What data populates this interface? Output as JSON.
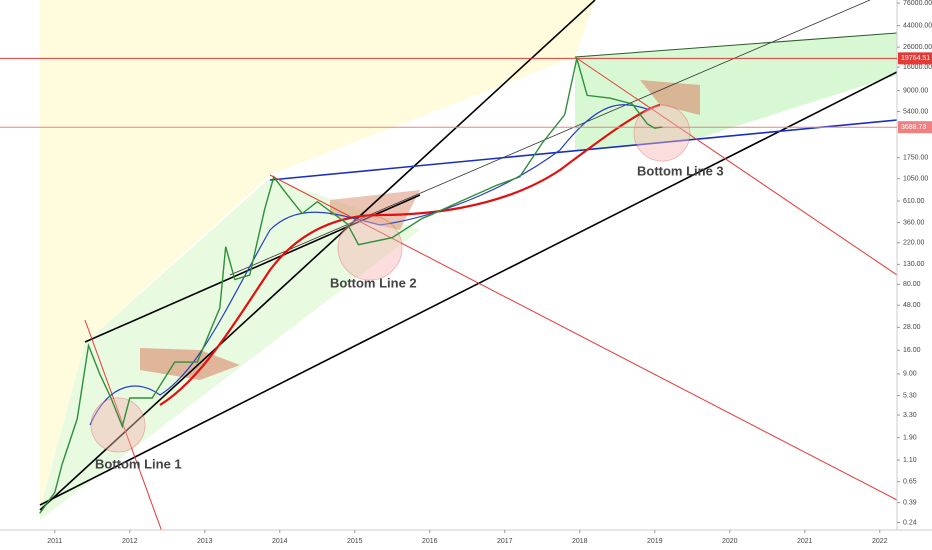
{
  "chart_data": {
    "type": "line",
    "log_scale": true,
    "x": [
      2010.8,
      2011.0,
      2011.1,
      2011.3,
      2011.45,
      2011.6,
      2011.75,
      2011.9,
      2012.0,
      2012.3,
      2012.6,
      2012.9,
      2013.2,
      2013.28,
      2013.4,
      2013.6,
      2013.8,
      2013.92,
      2014.05,
      2014.3,
      2014.5,
      2014.9,
      2015.05,
      2015.5,
      2015.9,
      2016.0,
      2016.5,
      2016.9,
      2017.2,
      2017.5,
      2017.8,
      2017.96,
      2018.1,
      2018.4,
      2018.7,
      2018.9,
      2019.0,
      2019.1
    ],
    "series": [
      {
        "color": "#2f8f3a",
        "values": [
          0.3,
          0.5,
          1.0,
          3.0,
          18,
          9,
          5,
          2.5,
          5,
          5,
          12,
          12,
          45,
          200,
          90,
          100,
          500,
          1100,
          800,
          450,
          600,
          350,
          210,
          250,
          400,
          430,
          650,
          900,
          1100,
          2500,
          5000,
          19700,
          8000,
          7500,
          6500,
          4000,
          3600,
          3700
        ]
      }
    ],
    "xlim": [
      2010.27,
      2022.23
    ],
    "ylim": [
      0.2,
      82000
    ],
    "xticks": [
      2011,
      2012,
      2013,
      2014,
      2015,
      2016,
      2017,
      2018,
      2019,
      2020,
      2021,
      2022
    ],
    "yticks": [
      {
        "value": 76000,
        "label": "76000.00"
      },
      {
        "value": 44000,
        "label": "44000.00"
      },
      {
        "value": 26000,
        "label": "26000.00"
      },
      {
        "value": 16000,
        "label": "16000.00"
      },
      {
        "value": 9000,
        "label": "9000.00"
      },
      {
        "value": 5400,
        "label": "5400.00"
      },
      {
        "value": 1750,
        "label": "1750.00"
      },
      {
        "value": 1050,
        "label": "1050.00"
      },
      {
        "value": 610,
        "label": "610.00"
      },
      {
        "value": 360,
        "label": "360.00"
      },
      {
        "value": 220,
        "label": "220.00"
      },
      {
        "value": 130,
        "label": "130.00"
      },
      {
        "value": 80,
        "label": "80.00"
      },
      {
        "value": 48,
        "label": "48.00"
      },
      {
        "value": 28,
        "label": "28.00"
      },
      {
        "value": 16,
        "label": "16.00"
      },
      {
        "value": 9,
        "label": "9.00"
      },
      {
        "value": 5.3,
        "label": "5.30"
      },
      {
        "value": 3.3,
        "label": "3.30"
      },
      {
        "value": 1.9,
        "label": "1.90"
      },
      {
        "value": 1.1,
        "label": "1.10"
      },
      {
        "value": 0.65,
        "label": "0.65"
      },
      {
        "value": 0.39,
        "label": "0.39"
      },
      {
        "value": 0.24,
        "label": "0.24"
      }
    ],
    "price_lines": [
      {
        "value": 19764.51,
        "color": "#e53935"
      },
      {
        "value": 3688.73,
        "color": "#f08080"
      }
    ],
    "annotations": [
      {
        "text": "Bottom Line 1",
        "color": "#111111"
      },
      {
        "text": "Bottom Line 2",
        "color": "#111111"
      },
      {
        "text": "Bottom Line 3",
        "color": "#1f3fae"
      }
    ]
  }
}
